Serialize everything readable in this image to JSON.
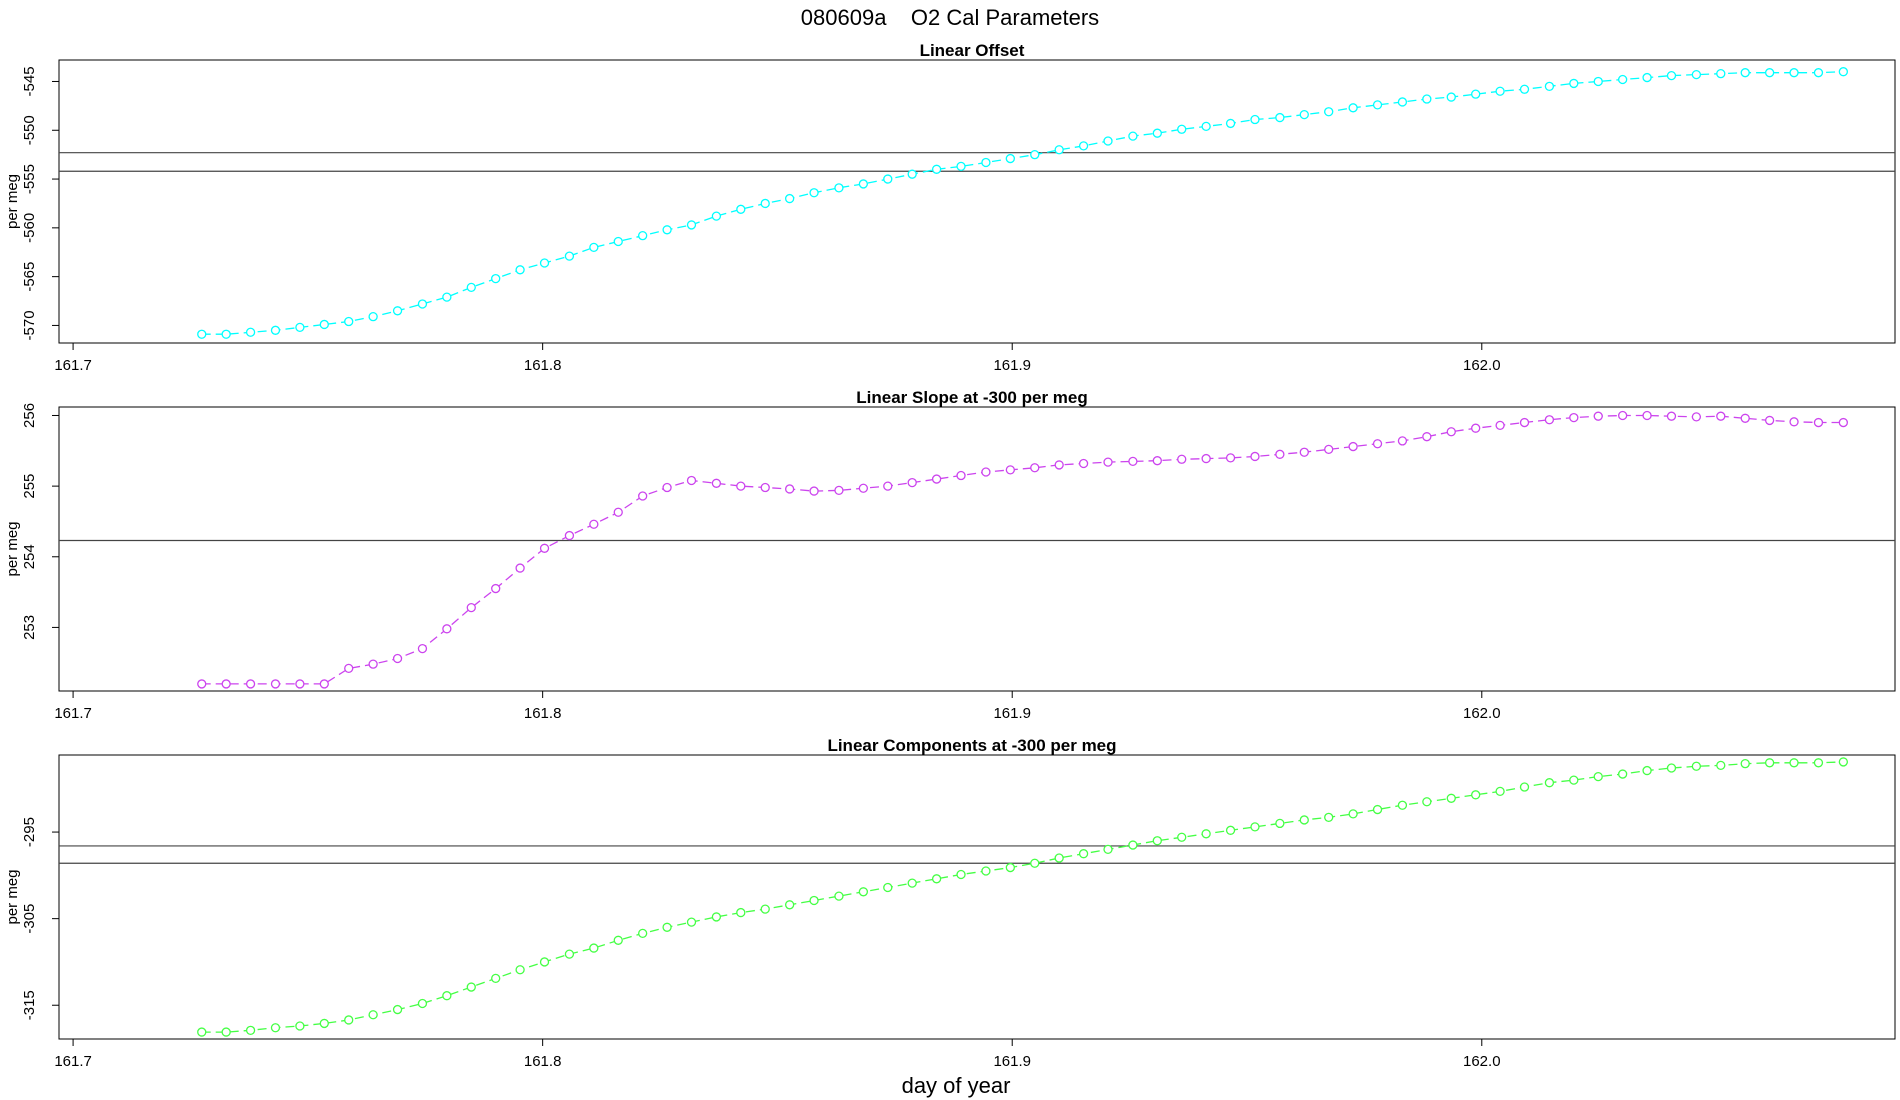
{
  "title": "080609a    O2 Cal Parameters",
  "xlabel": "day of year",
  "chart_data": [
    {
      "type": "line",
      "title": "Linear Offset",
      "ylabel": "per meg",
      "color": "#00ffff",
      "xlim": [
        161.697,
        162.088
      ],
      "ylim": [
        -571.8,
        -542.8
      ],
      "xticks": [
        161.7,
        161.8,
        161.9,
        162.0
      ],
      "xtick_labels": [
        "161.7",
        "161.8",
        "161.9",
        "162.0"
      ],
      "yticks": [
        -570,
        -565,
        -560,
        -555,
        -550,
        -545
      ],
      "ytick_labels": [
        "-570",
        "-565",
        "-560",
        "-555",
        "-550",
        "-545"
      ],
      "hlines": [
        -552.3,
        -554.2
      ],
      "x": [
        161.7274,
        161.7326,
        161.7378,
        161.7431,
        161.7483,
        161.7535,
        161.7587,
        161.7639,
        161.7691,
        161.7744,
        161.7796,
        161.7848,
        161.79,
        161.7952,
        161.8004,
        161.8057,
        161.8109,
        161.8161,
        161.8213,
        161.8265,
        161.8317,
        161.837,
        161.8422,
        161.8474,
        161.8526,
        161.8578,
        161.8631,
        161.8683,
        161.8735,
        161.8787,
        161.8839,
        161.8891,
        161.8944,
        161.8996,
        161.9048,
        161.91,
        161.9152,
        161.9204,
        161.9257,
        161.9309,
        161.9361,
        161.9413,
        161.9465,
        161.9517,
        161.957,
        161.9622,
        161.9674,
        161.9726,
        161.9778,
        161.9831,
        161.9883,
        161.9935,
        161.9987,
        162.0039,
        162.0091,
        162.0144,
        162.0196,
        162.0248,
        162.03,
        162.0352,
        162.0404,
        162.0457,
        162.0509,
        162.0561,
        162.0613,
        162.0665,
        162.0717,
        162.077
      ],
      "values": [
        -570.9,
        -570.9,
        -570.7,
        -570.5,
        -570.2,
        -569.9,
        -569.6,
        -569.1,
        -568.5,
        -567.8,
        -567.1,
        -566.1,
        -565.2,
        -564.3,
        -563.6,
        -562.9,
        -562.0,
        -561.4,
        -560.8,
        -560.2,
        -559.7,
        -558.8,
        -558.1,
        -557.5,
        -557.0,
        -556.4,
        -555.9,
        -555.5,
        -555.0,
        -554.5,
        -554.0,
        -553.7,
        -553.3,
        -552.9,
        -552.5,
        -552.0,
        -551.6,
        -551.1,
        -550.6,
        -550.3,
        -549.9,
        -549.6,
        -549.3,
        -548.9,
        -548.7,
        -548.4,
        -548.1,
        -547.7,
        -547.4,
        -547.1,
        -546.8,
        -546.6,
        -546.3,
        -546.0,
        -545.8,
        -545.5,
        -545.2,
        -545.0,
        -544.8,
        -544.6,
        -544.4,
        -544.3,
        -544.2,
        -544.1,
        -544.1,
        -544.1,
        -544.1,
        -544.0
      ]
    },
    {
      "type": "line",
      "title": "Linear Slope at -300 per meg",
      "ylabel": "per meg",
      "color": "#cc44ee",
      "xlim": [
        161.697,
        162.088
      ],
      "ylim": [
        252.1,
        256.12
      ],
      "xticks": [
        161.7,
        161.8,
        161.9,
        162.0
      ],
      "xtick_labels": [
        "161.7",
        "161.8",
        "161.9",
        "162.0"
      ],
      "yticks": [
        253,
        254,
        255,
        256
      ],
      "ytick_labels": [
        "253",
        "254",
        "255",
        "256"
      ],
      "hlines": [
        254.23
      ],
      "x": [
        161.7274,
        161.7326,
        161.7378,
        161.7431,
        161.7483,
        161.7535,
        161.7587,
        161.7639,
        161.7691,
        161.7744,
        161.7796,
        161.7848,
        161.79,
        161.7952,
        161.8004,
        161.8057,
        161.8109,
        161.8161,
        161.8213,
        161.8265,
        161.8317,
        161.837,
        161.8422,
        161.8474,
        161.8526,
        161.8578,
        161.8631,
        161.8683,
        161.8735,
        161.8787,
        161.8839,
        161.8891,
        161.8944,
        161.8996,
        161.9048,
        161.91,
        161.9152,
        161.9204,
        161.9257,
        161.9309,
        161.9361,
        161.9413,
        161.9465,
        161.9517,
        161.957,
        161.9622,
        161.9674,
        161.9726,
        161.9778,
        161.9831,
        161.9883,
        161.9935,
        161.9987,
        162.0039,
        162.0091,
        162.0144,
        162.0196,
        162.0248,
        162.03,
        162.0352,
        162.0404,
        162.0457,
        162.0509,
        162.0561,
        162.0613,
        162.0665,
        162.0717,
        162.077
      ],
      "values": [
        252.2,
        252.2,
        252.2,
        252.2,
        252.2,
        252.2,
        252.42,
        252.48,
        252.56,
        252.7,
        252.98,
        253.28,
        253.55,
        253.84,
        254.12,
        254.3,
        254.46,
        254.63,
        254.86,
        254.98,
        255.08,
        255.04,
        255.0,
        254.98,
        254.96,
        254.93,
        254.94,
        254.97,
        255.0,
        255.05,
        255.1,
        255.15,
        255.2,
        255.23,
        255.26,
        255.3,
        255.32,
        255.34,
        255.35,
        255.36,
        255.38,
        255.39,
        255.4,
        255.42,
        255.45,
        255.48,
        255.52,
        255.56,
        255.6,
        255.64,
        255.7,
        255.77,
        255.82,
        255.86,
        255.9,
        255.94,
        255.97,
        255.99,
        256.0,
        256.0,
        255.99,
        255.98,
        255.99,
        255.96,
        255.93,
        255.91,
        255.9,
        255.9
      ]
    },
    {
      "type": "line",
      "title": "Linear Components at -300 per meg",
      "ylabel": "per meg",
      "color": "#44ff44",
      "xlim": [
        161.697,
        162.088
      ],
      "ylim": [
        -318.9,
        -286.1
      ],
      "xticks": [
        161.7,
        161.8,
        161.9,
        162.0
      ],
      "xtick_labels": [
        "161.7",
        "161.8",
        "161.9",
        "162.0"
      ],
      "yticks": [
        -315,
        -305,
        -295
      ],
      "ytick_labels": [
        "-315",
        "-305",
        "-295"
      ],
      "hlines": [
        -296.6,
        -298.6
      ],
      "x": [
        161.7274,
        161.7326,
        161.7378,
        161.7431,
        161.7483,
        161.7535,
        161.7587,
        161.7639,
        161.7691,
        161.7744,
        161.7796,
        161.7848,
        161.79,
        161.7952,
        161.8004,
        161.8057,
        161.8109,
        161.8161,
        161.8213,
        161.8265,
        161.8317,
        161.837,
        161.8422,
        161.8474,
        161.8526,
        161.8578,
        161.8631,
        161.8683,
        161.8735,
        161.8787,
        161.8839,
        161.8891,
        161.8944,
        161.8996,
        161.9048,
        161.91,
        161.9152,
        161.9204,
        161.9257,
        161.9309,
        161.9361,
        161.9413,
        161.9465,
        161.9517,
        161.957,
        161.9622,
        161.9674,
        161.9726,
        161.9778,
        161.9831,
        161.9883,
        161.9935,
        161.9987,
        162.0039,
        162.0091,
        162.0144,
        162.0196,
        162.0248,
        162.03,
        162.0352,
        162.0404,
        162.0457,
        162.0509,
        162.0561,
        162.0613,
        162.0665,
        162.0717,
        162.077
      ],
      "values": [
        -318.1,
        -318.1,
        -317.9,
        -317.6,
        -317.4,
        -317.1,
        -316.7,
        -316.1,
        -315.5,
        -314.8,
        -313.9,
        -312.9,
        -311.9,
        -310.9,
        -310.0,
        -309.1,
        -308.4,
        -307.5,
        -306.7,
        -306.0,
        -305.4,
        -304.8,
        -304.3,
        -303.9,
        -303.4,
        -302.9,
        -302.4,
        -301.9,
        -301.4,
        -300.9,
        -300.4,
        -299.9,
        -299.5,
        -299.1,
        -298.6,
        -298.0,
        -297.5,
        -297.0,
        -296.5,
        -296.0,
        -295.6,
        -295.2,
        -294.8,
        -294.4,
        -294.0,
        -293.6,
        -293.3,
        -292.9,
        -292.4,
        -291.9,
        -291.5,
        -291.1,
        -290.7,
        -290.3,
        -289.8,
        -289.3,
        -289.0,
        -288.6,
        -288.3,
        -287.9,
        -287.6,
        -287.4,
        -287.3,
        -287.1,
        -287.0,
        -287.0,
        -287.0,
        -286.9
      ]
    }
  ]
}
